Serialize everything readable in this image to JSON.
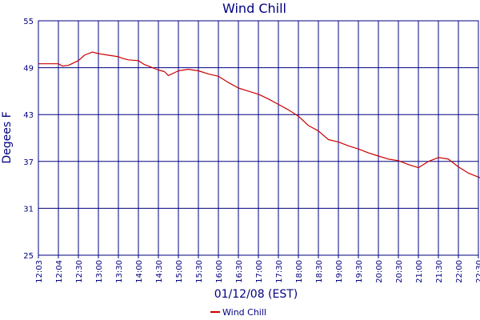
{
  "chart_data": {
    "type": "line",
    "title": "Wind Chill",
    "xlabel": "01/12/08 (EST)",
    "ylabel": "Degees F",
    "ylim": [
      25,
      55
    ],
    "yticks": [
      25,
      31,
      37,
      43,
      49,
      55
    ],
    "grid": true,
    "legend_position": "bottom",
    "colors": {
      "axis": "#000080",
      "series": "#cc0000",
      "background": "#ffffff"
    },
    "categories": [
      "12:03",
      "12:04",
      "12:30",
      "13:00",
      "13:30",
      "14:00",
      "14:30",
      "15:00",
      "15:30",
      "16:00",
      "16:30",
      "17:00",
      "17:30",
      "18:00",
      "18:30",
      "19:00",
      "19:30",
      "20:00",
      "20:30",
      "21:00",
      "21:30",
      "22:00",
      "22:30"
    ],
    "series": [
      {
        "name": "Wind Chill",
        "x": [
          0,
          0.5,
          1.0,
          1.2,
          1.5,
          2.0,
          2.3,
          2.7,
          3.0,
          3.5,
          4.0,
          4.2,
          4.5,
          5.0,
          5.3,
          5.5,
          6.0,
          6.3,
          6.5,
          7.0,
          7.5,
          8.0,
          8.5,
          9.0,
          9.5,
          10.0,
          10.5,
          11.0,
          11.5,
          12.0,
          12.5,
          13.0,
          13.5,
          14.0,
          14.5,
          15.0,
          15.5,
          16.0,
          16.5,
          17.0,
          17.5,
          18.0,
          18.5,
          19.0,
          19.5,
          20.0,
          20.5,
          21.0,
          21.5,
          22.0,
          22.5,
          22.8
        ],
        "values": [
          49.5,
          49.5,
          49.5,
          49.2,
          49.3,
          49.9,
          50.6,
          51.0,
          50.8,
          50.6,
          50.4,
          50.2,
          50.0,
          49.9,
          49.4,
          49.2,
          48.7,
          48.5,
          48.0,
          48.6,
          48.8,
          48.6,
          48.2,
          47.9,
          47.1,
          46.4,
          46.0,
          45.6,
          45.0,
          44.3,
          43.6,
          42.8,
          41.6,
          40.9,
          39.8,
          39.5,
          39.0,
          38.6,
          38.1,
          37.7,
          37.3,
          37.1,
          36.6,
          36.2,
          37.0,
          37.5,
          37.3,
          36.3,
          35.5,
          35.0,
          34.4,
          34.0
        ]
      }
    ]
  }
}
